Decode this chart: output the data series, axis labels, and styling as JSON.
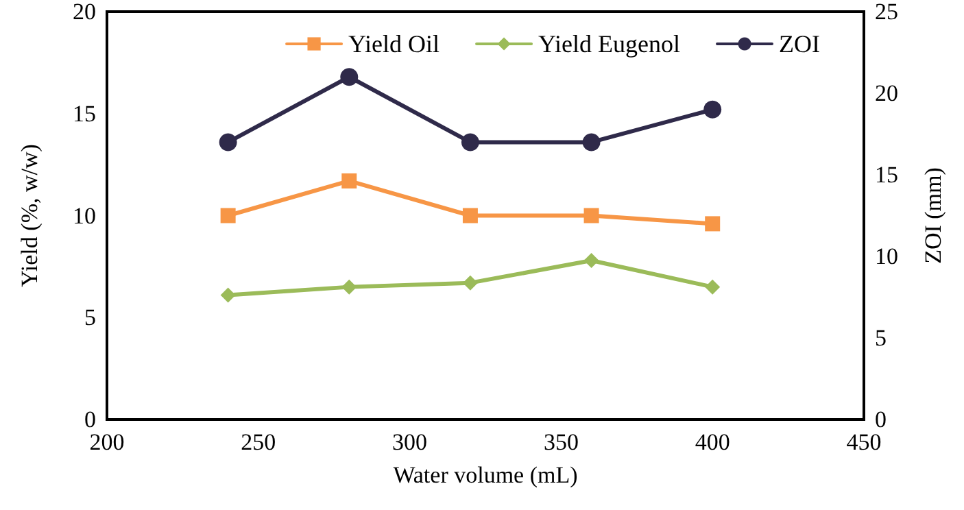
{
  "chart_data": {
    "type": "line",
    "xlabel": "Water volume (mL)",
    "ylabel": "Yield (%, w/w)",
    "y2label": "ZOI (mm)",
    "x": [
      240,
      280,
      320,
      360,
      400
    ],
    "series": [
      {
        "name": "Yield Oil",
        "color": "#f79646",
        "marker": "square",
        "values": [
          10,
          11.7,
          10,
          10,
          9.6
        ]
      },
      {
        "name": "Yield Eugenol",
        "color": "#9bbb59",
        "marker": "diamond",
        "values": [
          6.1,
          6.5,
          6.7,
          7.8,
          6.5
        ]
      },
      {
        "name": "ZOI",
        "color": "#2f2a4a",
        "marker": "circle",
        "axis": "y2",
        "values": [
          17,
          21,
          17,
          17,
          19
        ]
      }
    ],
    "xlim": [
      200,
      450
    ],
    "xticks": [
      200,
      250,
      300,
      350,
      400,
      450
    ],
    "ylim": [
      0,
      20
    ],
    "yticks": [
      0,
      5,
      10,
      15,
      20
    ],
    "y2lim": [
      0,
      25
    ],
    "y2ticks": [
      0,
      5,
      10,
      15,
      20,
      25
    ],
    "grid": false,
    "legend": "top right",
    "line_style": "solid"
  }
}
